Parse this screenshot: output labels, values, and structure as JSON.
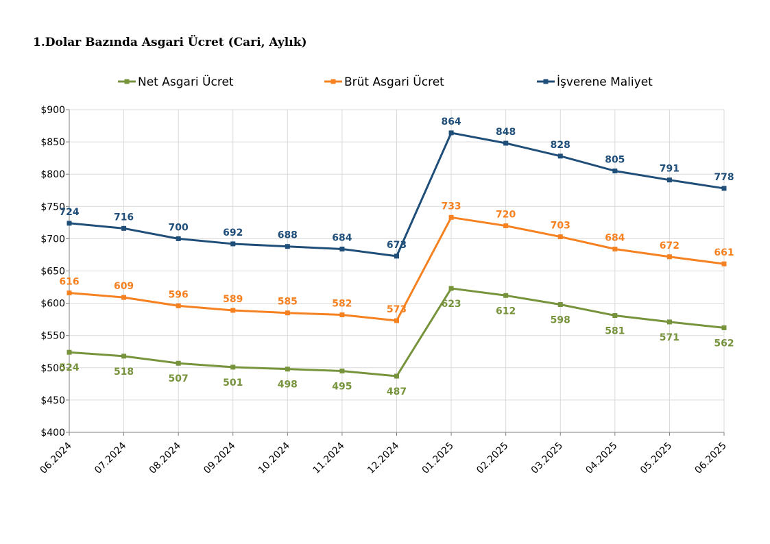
{
  "title": "1.Dolar Bazında Asgari Ücret (Cari, Aylık)",
  "chart_data": {
    "type": "line",
    "title": "1.Dolar Bazında Asgari Ücret (Cari, Aylık)",
    "xlabel": "",
    "ylabel": "",
    "categories": [
      "06.2024",
      "07.2024",
      "08.2024",
      "09.2024",
      "10.2024",
      "11.2024",
      "12.2024",
      "01.2025",
      "02.2025",
      "03.2025",
      "04.2025",
      "05.2025",
      "06.2025"
    ],
    "ylim": [
      400,
      900
    ],
    "yticks": [
      {
        "value": 400,
        "label": "$400"
      },
      {
        "value": 450,
        "label": "$450"
      },
      {
        "value": 500,
        "label": "$500"
      },
      {
        "value": 550,
        "label": "$550"
      },
      {
        "value": 600,
        "label": "$600"
      },
      {
        "value": 650,
        "label": "$650"
      },
      {
        "value": 700,
        "label": "$700"
      },
      {
        "value": 750,
        "label": "$750"
      },
      {
        "value": 800,
        "label": "$800"
      },
      {
        "value": 850,
        "label": "$850"
      },
      {
        "value": 900,
        "label": "$900"
      }
    ],
    "grid": true,
    "legend": "top",
    "series": [
      {
        "name": "Net Asgari Ücret",
        "color": "#77933c",
        "label_position": "below",
        "values": [
          524,
          518,
          507,
          501,
          498,
          495,
          487,
          623,
          612,
          598,
          581,
          571,
          562
        ],
        "labels": [
          "524",
          "518",
          "507",
          "501",
          "498",
          "495",
          "487",
          "623",
          "612",
          "598",
          "581",
          "571",
          "562"
        ]
      },
      {
        "name": "Brüt Asgari Ücret",
        "color": "#f68121",
        "label_position": "above",
        "values": [
          616,
          609,
          596,
          589,
          585,
          582,
          573,
          733,
          720,
          703,
          684,
          672,
          661
        ],
        "labels": [
          "616",
          "609",
          "596",
          "589",
          "585",
          "582",
          "573",
          "733",
          "720",
          "703",
          "684",
          "672",
          "661"
        ]
      },
      {
        "name": "İşverene Maliyet",
        "color": "#1f4e79",
        "label_position": "above",
        "values": [
          724,
          716,
          700,
          692,
          688,
          684,
          673,
          864,
          848,
          828,
          805,
          791,
          778
        ],
        "labels": [
          "724",
          "716",
          "700",
          "692",
          "688",
          "684",
          "673",
          "864",
          "848",
          "828",
          "805",
          "791",
          "778"
        ]
      }
    ]
  }
}
